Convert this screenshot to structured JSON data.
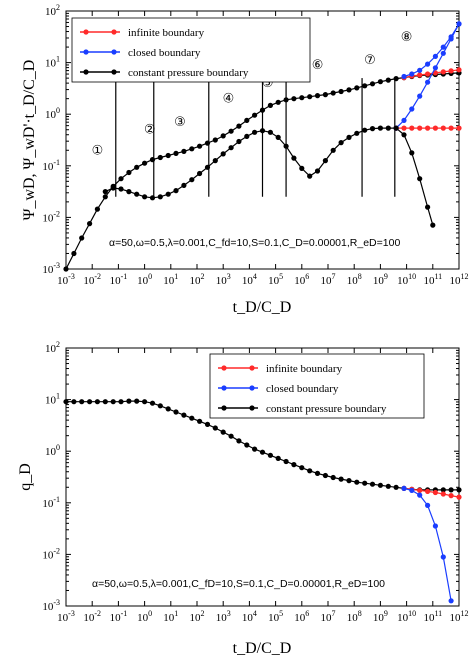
{
  "chart_data": [
    {
      "type": "line",
      "title": "",
      "xlabel": "t_D/C_D",
      "ylabel": "Ψ_wD, Ψ_wD'·t_D/C_D",
      "xscale": "log",
      "yscale": "log",
      "xlim": [
        -3,
        12
      ],
      "ylim": [
        -3,
        2
      ],
      "annotation": "α=50,ω=0.5,λ=0.001,C_fd=10,S=0.1,C_D=0.00001,R_eD=100",
      "legend": {
        "position": "top",
        "entries": [
          {
            "label": "infinite boundary",
            "color": "#ff2a2a"
          },
          {
            "label": "closed boundary",
            "color": "#1a3dff"
          },
          {
            "label": "constant pressure boundary",
            "color": "#000000"
          }
        ]
      },
      "regions": [
        {
          "label": "①",
          "x": -1.8,
          "y": -0.7
        },
        {
          "label": "②",
          "x": 0.2,
          "y": -0.3
        },
        {
          "label": "③",
          "x": 1.35,
          "y": -0.15
        },
        {
          "label": "④",
          "x": 3.2,
          "y": 0.3
        },
        {
          "label": "⑤",
          "x": 4.7,
          "y": 0.6
        },
        {
          "label": "⑥",
          "x": 6.6,
          "y": 0.95
        },
        {
          "label": "⑦",
          "x": 8.6,
          "y": 1.05
        },
        {
          "label": "⑧",
          "x": 10.0,
          "y": 1.5
        }
      ],
      "region_lines": [
        -1.1,
        0.35,
        2.45,
        4.5,
        5.4,
        8.3,
        9.55
      ],
      "series": [
        {
          "name": "pressure",
          "color": "#000000",
          "x": [
            -3,
            -2.7,
            -2.4,
            -2.1,
            -1.8,
            -1.5,
            -1.2,
            -0.9,
            -0.6,
            -0.3,
            0,
            0.3,
            0.6,
            0.9,
            1.2,
            1.5,
            1.8,
            2.1,
            2.4,
            2.7,
            3,
            3.3,
            3.6,
            3.9,
            4.2,
            4.5,
            4.8,
            5.1,
            5.4,
            5.7,
            6,
            6.3,
            6.6,
            6.9,
            7.2,
            7.5,
            7.8,
            8.1,
            8.4,
            8.7,
            9,
            9.3,
            9.6,
            9.9,
            10.2,
            10.5,
            10.8,
            11.1,
            11.4,
            11.7,
            12
          ],
          "y": [
            -3,
            -2.7,
            -2.4,
            -2.12,
            -1.84,
            -1.6,
            -1.4,
            -1.25,
            -1.13,
            -1.03,
            -0.95,
            -0.88,
            -0.84,
            -0.8,
            -0.76,
            -0.72,
            -0.67,
            -0.62,
            -0.56,
            -0.5,
            -0.42,
            -0.33,
            -0.23,
            -0.12,
            -0.02,
            0.08,
            0.17,
            0.23,
            0.28,
            0.3,
            0.32,
            0.34,
            0.36,
            0.38,
            0.41,
            0.44,
            0.47,
            0.51,
            0.55,
            0.59,
            0.63,
            0.66,
            0.69,
            0.71,
            0.73,
            0.75,
            0.76,
            0.77,
            0.78,
            0.79,
            0.8
          ]
        },
        {
          "name": "derivative",
          "color": "#000000",
          "x": [
            -1.5,
            -1.2,
            -0.9,
            -0.6,
            -0.3,
            0,
            0.3,
            0.6,
            0.9,
            1.2,
            1.5,
            1.8,
            2.1,
            2.4,
            2.7,
            3,
            3.3,
            3.6,
            3.9,
            4.2,
            4.5,
            4.8,
            5.1,
            5.4,
            5.7,
            6,
            6.3,
            6.6,
            6.9,
            7.2,
            7.5,
            7.8,
            8.1,
            8.4,
            8.7,
            9,
            9.3,
            9.6
          ],
          "y": [
            -1.5,
            -1.43,
            -1.45,
            -1.5,
            -1.55,
            -1.6,
            -1.62,
            -1.6,
            -1.55,
            -1.48,
            -1.38,
            -1.27,
            -1.15,
            -1.03,
            -0.9,
            -0.77,
            -0.65,
            -0.53,
            -0.43,
            -0.35,
            -0.32,
            -0.35,
            -0.45,
            -0.62,
            -0.85,
            -1.05,
            -1.2,
            -1.1,
            -0.9,
            -0.7,
            -0.55,
            -0.45,
            -0.37,
            -0.31,
            -0.28,
            -0.27,
            -0.27,
            -0.27
          ]
        },
        {
          "name": "infinite boundary",
          "color": "#ff2a2a",
          "x": [
            9.6,
            9.9,
            10.2,
            10.5,
            10.8,
            11.1,
            11.4,
            11.7,
            12
          ],
          "y": [
            -0.27,
            -0.27,
            -0.27,
            -0.27,
            -0.27,
            -0.27,
            -0.27,
            -0.27,
            -0.27
          ]
        },
        {
          "name": "infinite boundary",
          "color": "#ff2a2a",
          "x": [
            9.9,
            10.2,
            10.5,
            10.8,
            11.1,
            11.4,
            11.7,
            12
          ],
          "y": [
            0.71,
            0.74,
            0.76,
            0.78,
            0.8,
            0.82,
            0.84,
            0.86
          ]
        },
        {
          "name": "closed boundary",
          "color": "#1a3dff",
          "x": [
            9.6,
            9.9,
            10.2,
            10.5,
            10.8,
            11.1,
            11.4,
            11.7,
            12
          ],
          "y": [
            -0.27,
            -0.12,
            0.1,
            0.35,
            0.62,
            0.9,
            1.18,
            1.46,
            1.75
          ]
        },
        {
          "name": "closed boundary",
          "color": "#1a3dff",
          "x": [
            9.9,
            10.2,
            10.5,
            10.8,
            11.1,
            11.4,
            11.7,
            12
          ],
          "y": [
            0.73,
            0.78,
            0.85,
            0.97,
            1.12,
            1.3,
            1.5,
            1.75
          ]
        },
        {
          "name": "constant pressure boundary",
          "color": "#000000",
          "x": [
            9.6,
            9.9,
            10.2,
            10.5,
            10.8,
            11.0
          ],
          "y": [
            -0.27,
            -0.4,
            -0.75,
            -1.25,
            -1.8,
            -2.15
          ]
        }
      ]
    },
    {
      "type": "line",
      "title": "",
      "xlabel": "t_D/C_D",
      "ylabel": "q_D",
      "xscale": "log",
      "yscale": "log",
      "xlim": [
        -3,
        12
      ],
      "ylim": [
        -3,
        2
      ],
      "annotation": "α=50,ω=0.5,λ=0.001,C_fD=10,S=0.1,C_D=0.00001,R_eD=100",
      "legend": {
        "position": "top-right",
        "entries": [
          {
            "label": "infinite boundary",
            "color": "#ff2a2a"
          },
          {
            "label": "closed boundary",
            "color": "#1a3dff"
          },
          {
            "label": "constant pressure boundary",
            "color": "#000000"
          }
        ]
      },
      "series": [
        {
          "name": "constant pressure boundary",
          "color": "#000000",
          "x": [
            -3,
            -2.7,
            -2.4,
            -2.1,
            -1.8,
            -1.5,
            -1.2,
            -0.9,
            -0.6,
            -0.3,
            0,
            0.3,
            0.6,
            0.9,
            1.2,
            1.5,
            1.8,
            2.1,
            2.4,
            2.7,
            3,
            3.3,
            3.6,
            3.9,
            4.2,
            4.5,
            4.8,
            5.1,
            5.4,
            5.7,
            6,
            6.3,
            6.6,
            6.9,
            7.2,
            7.5,
            7.8,
            8.1,
            8.4,
            8.7,
            9,
            9.3,
            9.6,
            9.9,
            10.2,
            10.5,
            10.8,
            11.1,
            11.4,
            11.7,
            12
          ],
          "y": [
            0.96,
            0.96,
            0.96,
            0.96,
            0.96,
            0.96,
            0.96,
            0.96,
            0.97,
            0.97,
            0.96,
            0.93,
            0.88,
            0.82,
            0.76,
            0.7,
            0.64,
            0.58,
            0.52,
            0.45,
            0.37,
            0.29,
            0.2,
            0.12,
            0.04,
            -0.02,
            -0.08,
            -0.14,
            -0.2,
            -0.26,
            -0.32,
            -0.38,
            -0.43,
            -0.47,
            -0.51,
            -0.54,
            -0.57,
            -0.6,
            -0.62,
            -0.64,
            -0.66,
            -0.68,
            -0.7,
            -0.72,
            -0.74,
            -0.75,
            -0.75,
            -0.75,
            -0.75,
            -0.75,
            -0.75
          ]
        },
        {
          "name": "infinite boundary",
          "color": "#ff2a2a",
          "x": [
            9.9,
            10.2,
            10.5,
            10.8,
            11.1,
            11.4,
            11.7,
            12
          ],
          "y": [
            -0.72,
            -0.74,
            -0.76,
            -0.78,
            -0.8,
            -0.83,
            -0.86,
            -0.89
          ]
        },
        {
          "name": "closed boundary",
          "color": "#1a3dff",
          "x": [
            9.9,
            10.2,
            10.5,
            10.8,
            11.1,
            11.4,
            11.7
          ],
          "y": [
            -0.72,
            -0.76,
            -0.85,
            -1.05,
            -1.45,
            -2.05,
            -2.9
          ]
        }
      ]
    }
  ]
}
